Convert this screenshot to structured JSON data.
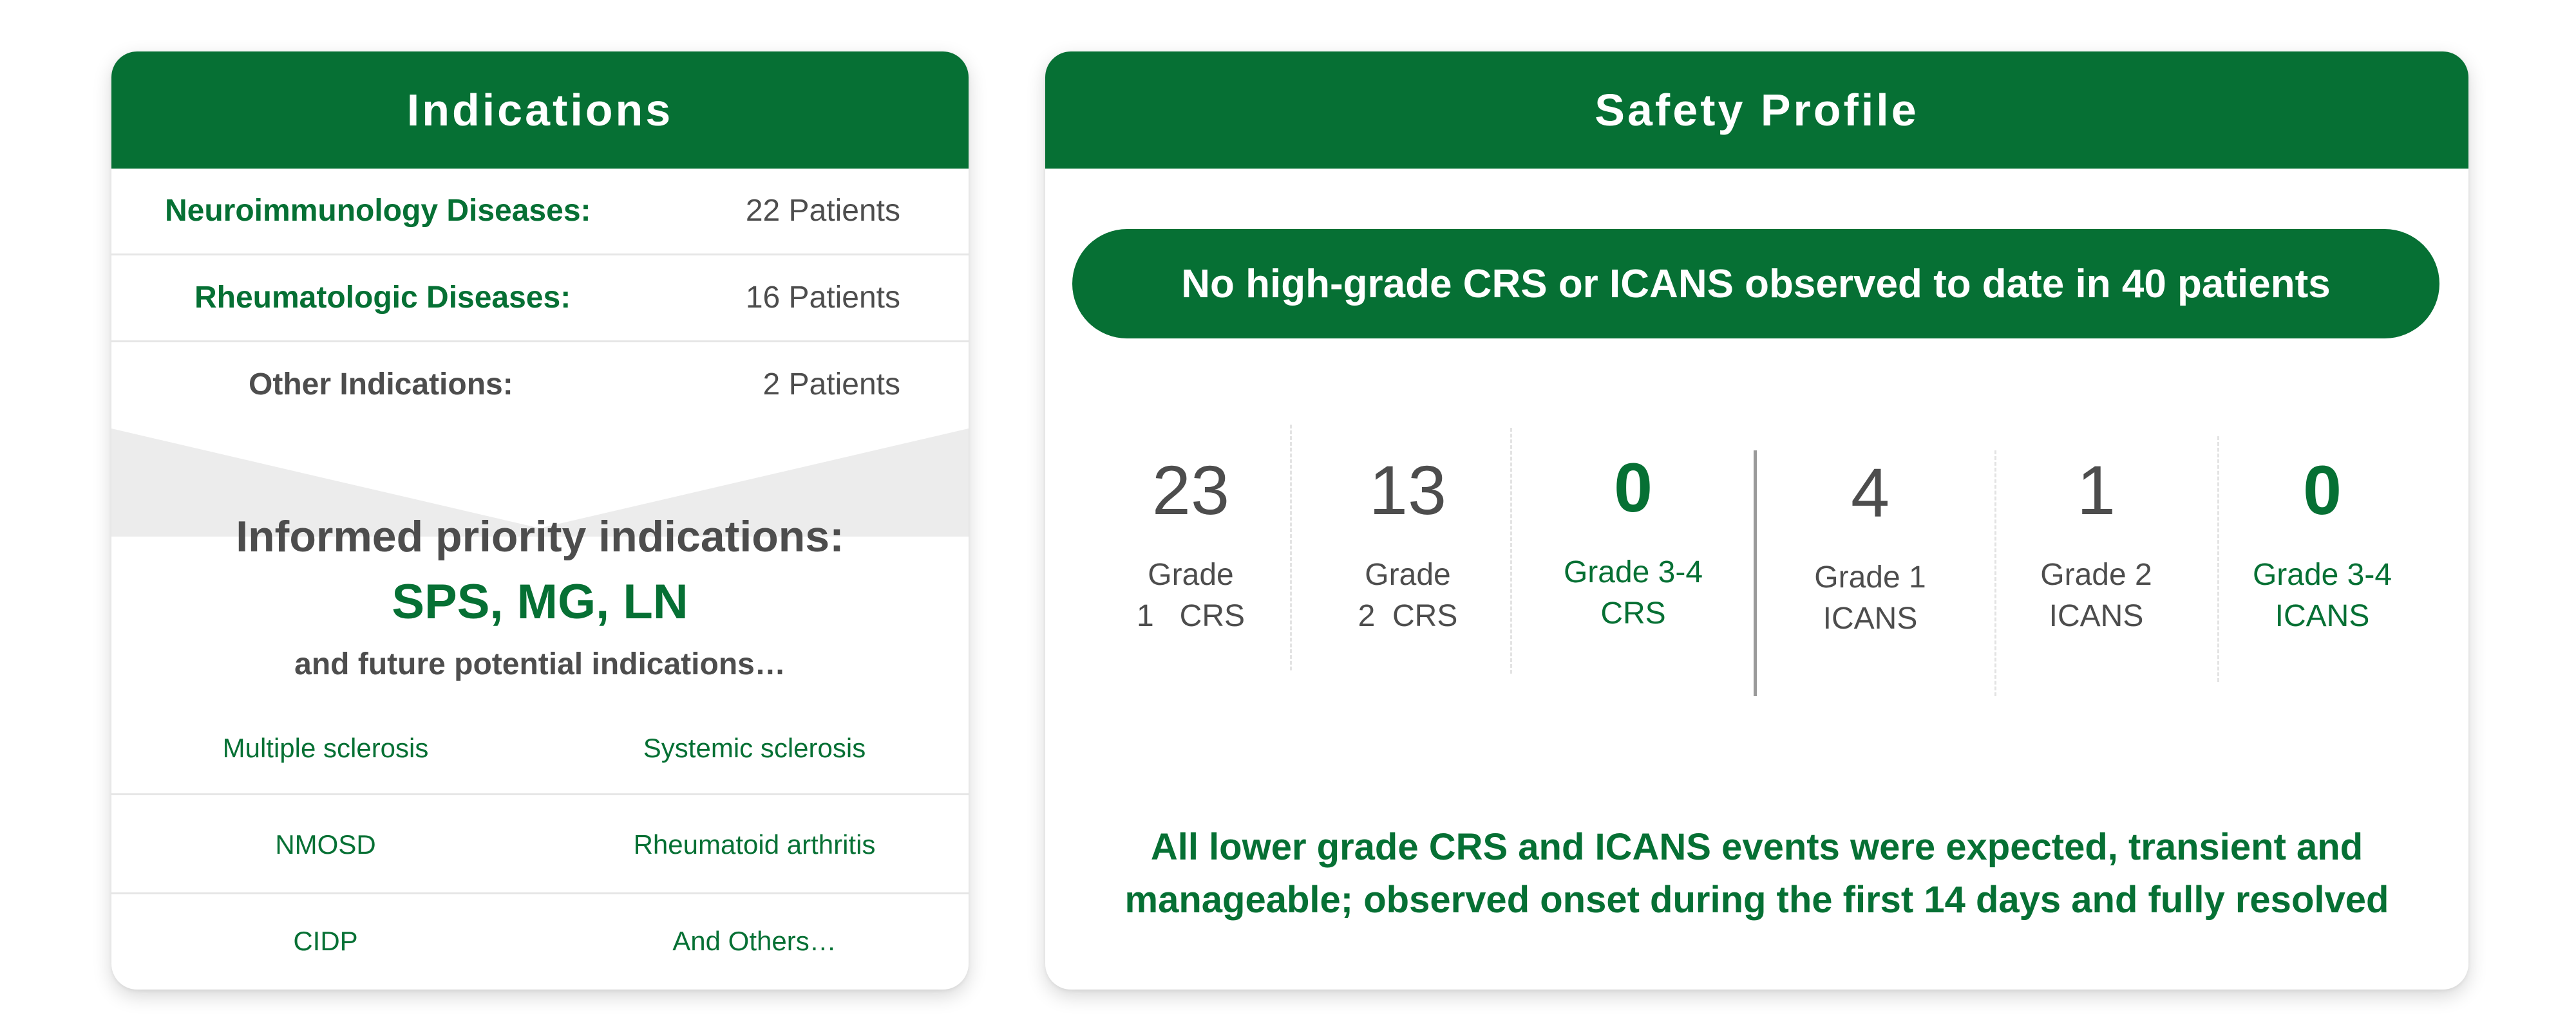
{
  "indications": {
    "title": "Indications",
    "rows": [
      {
        "label": "Neuroimmunology Diseases:",
        "value": "22 Patients"
      },
      {
        "label": "Rheumatologic Diseases:",
        "value": "16 Patients"
      },
      {
        "label": "Other Indications:",
        "value": "2 Patients"
      }
    ],
    "priority": {
      "heading": "Informed priority indications:",
      "highlight": "SPS, MG, LN",
      "subheading": "and future potential indications…"
    },
    "future_list": [
      [
        "Multiple sclerosis",
        "Systemic sclerosis"
      ],
      [
        "NMOSD",
        "Rheumatoid arthritis"
      ],
      [
        "CIDP",
        "And Others…"
      ]
    ]
  },
  "safety": {
    "title": "Safety Profile",
    "banner": "No high-grade CRS or ICANS observed to date in 40 patients",
    "stats": [
      {
        "value": "23",
        "line1": "Grade",
        "line2": "1   CRS"
      },
      {
        "value": "13",
        "line1": "Grade",
        "line2": "2  CRS"
      },
      {
        "value": "0",
        "line1": "Grade 3-4",
        "line2": "CRS"
      },
      {
        "value": "4",
        "line1": "Grade 1",
        "line2": "ICANS"
      },
      {
        "value": "1",
        "line1": "Grade 2",
        "line2": "ICANS"
      },
      {
        "value": "0",
        "line1": "Grade 3-4",
        "line2": "ICANS"
      }
    ],
    "footnote_line1": "All lower grade CRS and ICANS events were expected, transient and",
    "footnote_line2": "manageable; observed onset during the first 14 days and fully resolved"
  },
  "colors": {
    "brand_green": "#067034",
    "text_grey": "#4d4d4d",
    "chevron_grey": "#ececec"
  }
}
